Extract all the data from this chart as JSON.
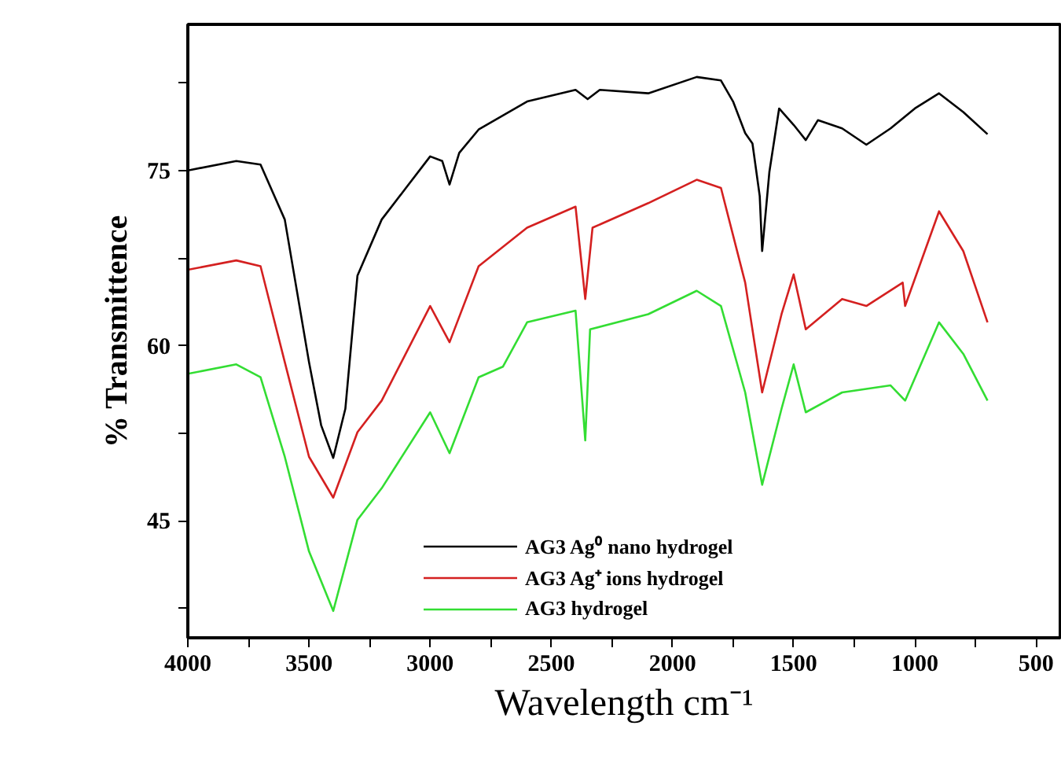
{
  "chart_data": {
    "type": "line",
    "xlabel": "Wavelength cm⁻¹",
    "ylabel": "% Transmittence",
    "x": [
      4000,
      3800,
      3700,
      3600,
      3500,
      3450,
      3400,
      3350,
      3300,
      3200,
      3100,
      3000,
      2950,
      2920,
      2880,
      2800,
      2600,
      2400,
      2350,
      2300,
      2100,
      1900,
      1800,
      1750,
      1700,
      1670,
      1640,
      1630,
      1600,
      1560,
      1500,
      1450,
      1400,
      1300,
      1200,
      1100,
      1000,
      900,
      800,
      700
    ],
    "series": [
      {
        "name": "AG3 Ag⁰ nano hydrogel",
        "color": "#000000",
        "values": [
          75,
          75.8,
          75.5,
          70.8,
          58.6,
          53.2,
          50.4,
          54.6,
          66,
          70.8,
          73.5,
          76.2,
          75.8,
          73.8,
          76.5,
          78.5,
          80.9,
          81.9,
          81.1,
          81.9,
          81.6,
          83,
          82.7,
          80.9,
          78.2,
          77.3,
          72.8,
          68.1,
          74.9,
          80.3,
          78.9,
          77.6,
          79.3,
          78.6,
          77.2,
          78.6,
          80.3,
          81.6,
          80,
          78.1
        ]
      },
      {
        "name": "AG3 Ag⁺ ions hydrogel",
        "color": "#d42020",
        "x": [
          4000,
          3800,
          3700,
          3600,
          3500,
          3400,
          3300,
          3200,
          3000,
          2920,
          2800,
          2600,
          2400,
          2360,
          2330,
          2100,
          1900,
          1800,
          1700,
          1630,
          1550,
          1500,
          1450,
          1300,
          1200,
          1050,
          1040,
          900,
          800,
          700
        ],
        "values": [
          66.5,
          67.3,
          66.8,
          58.6,
          50.5,
          47,
          52.6,
          55.3,
          63.4,
          60.3,
          66.8,
          70.1,
          71.9,
          64,
          70.1,
          72.2,
          74.2,
          73.5,
          65.4,
          56,
          62.7,
          66.1,
          61.4,
          64,
          63.4,
          65.4,
          63.4,
          71.5,
          68.1,
          62
        ]
      },
      {
        "name": "AG3 hydrogel",
        "color": "#33dd33",
        "x": [
          4000,
          3800,
          3700,
          3600,
          3500,
          3400,
          3300,
          3200,
          3000,
          2920,
          2800,
          2700,
          2600,
          2400,
          2360,
          2340,
          2100,
          1900,
          1800,
          1700,
          1630,
          1550,
          1500,
          1450,
          1300,
          1100,
          1040,
          900,
          800,
          700
        ],
        "values": [
          57.6,
          58.4,
          57.3,
          50.5,
          42.4,
          37.3,
          45.1,
          47.8,
          54.3,
          50.8,
          57.3,
          58.2,
          62,
          63,
          51.9,
          61.4,
          62.7,
          64.7,
          63.4,
          56,
          48.1,
          54.6,
          58.4,
          54.3,
          56,
          56.6,
          55.3,
          62,
          59.3,
          55.3
        ]
      }
    ],
    "xlim": [
      4000,
      400
    ],
    "ylim": [
      35,
      87.5
    ],
    "xticks": [
      4000,
      {
        "value": 3750,
        "label": null
      },
      3500,
      {
        "value": 3250,
        "label": null
      },
      3000,
      {
        "value": 2750,
        "label": null
      },
      2500,
      {
        "value": 2250,
        "label": null
      },
      2000,
      {
        "value": 1750,
        "label": null
      },
      1500,
      {
        "value": 1250,
        "label": null
      },
      1000,
      {
        "value": 750,
        "label": null
      },
      500
    ],
    "yticks": [
      {
        "value": 37.5,
        "label": null
      },
      45,
      {
        "value": 52.5,
        "label": null
      },
      60,
      {
        "value": 67.5,
        "label": null
      },
      75,
      {
        "value": 82.5,
        "label": null
      }
    ],
    "grid": false,
    "legend": "bottom",
    "line_style": "solid",
    "marker": "none"
  }
}
